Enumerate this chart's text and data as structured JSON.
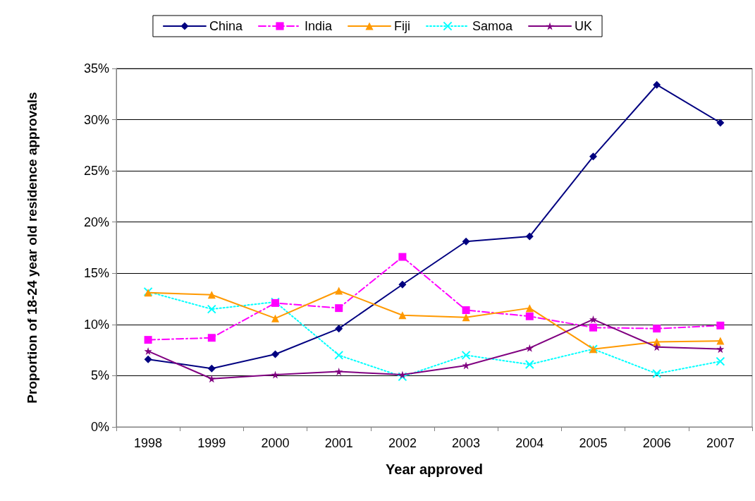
{
  "chart_data": {
    "type": "line",
    "xlabel": "Year approved",
    "ylabel": "Proportion of 18-24 year old residence approvals",
    "categories": [
      "1998",
      "1999",
      "2000",
      "2001",
      "2002",
      "2003",
      "2004",
      "2005",
      "2006",
      "2007"
    ],
    "ylim": [
      0,
      35
    ],
    "yticks": [
      {
        "value": 0,
        "label": "0%"
      },
      {
        "value": 5,
        "label": "5%"
      },
      {
        "value": 10,
        "label": "10%"
      },
      {
        "value": 15,
        "label": "15%"
      },
      {
        "value": 20,
        "label": "20%"
      },
      {
        "value": 25,
        "label": "25%"
      },
      {
        "value": 30,
        "label": "30%"
      },
      {
        "value": 35,
        "label": "35%"
      }
    ],
    "grid": "y",
    "legend": "top",
    "series": [
      {
        "name": "China",
        "color": "#000080",
        "marker": "diamond",
        "line_style": "solid",
        "values": [
          6.6,
          5.7,
          7.1,
          9.6,
          13.9,
          18.1,
          18.6,
          26.4,
          33.4,
          29.7
        ]
      },
      {
        "name": "India",
        "color": "#ff00ff",
        "marker": "square",
        "line_style": "dashed",
        "values": [
          8.5,
          8.7,
          12.1,
          11.6,
          16.6,
          11.4,
          10.8,
          9.7,
          9.6,
          9.9
        ]
      },
      {
        "name": "Fiji",
        "color": "#ff9900",
        "marker": "triangle",
        "line_style": "solid",
        "values": [
          13.1,
          12.9,
          10.6,
          13.3,
          10.9,
          10.7,
          11.6,
          7.6,
          8.3,
          8.4
        ]
      },
      {
        "name": "Samoa",
        "color": "#00ffff",
        "marker": "cross",
        "line_style": "dotted",
        "values": [
          13.2,
          11.5,
          12.2,
          7.0,
          4.9,
          7.0,
          6.1,
          7.6,
          5.2,
          6.4
        ]
      },
      {
        "name": "UK",
        "color": "#800080",
        "marker": "star",
        "line_style": "solid",
        "values": [
          7.4,
          4.7,
          5.1,
          5.4,
          5.1,
          6.0,
          7.7,
          10.5,
          7.8,
          7.6
        ]
      }
    ]
  }
}
